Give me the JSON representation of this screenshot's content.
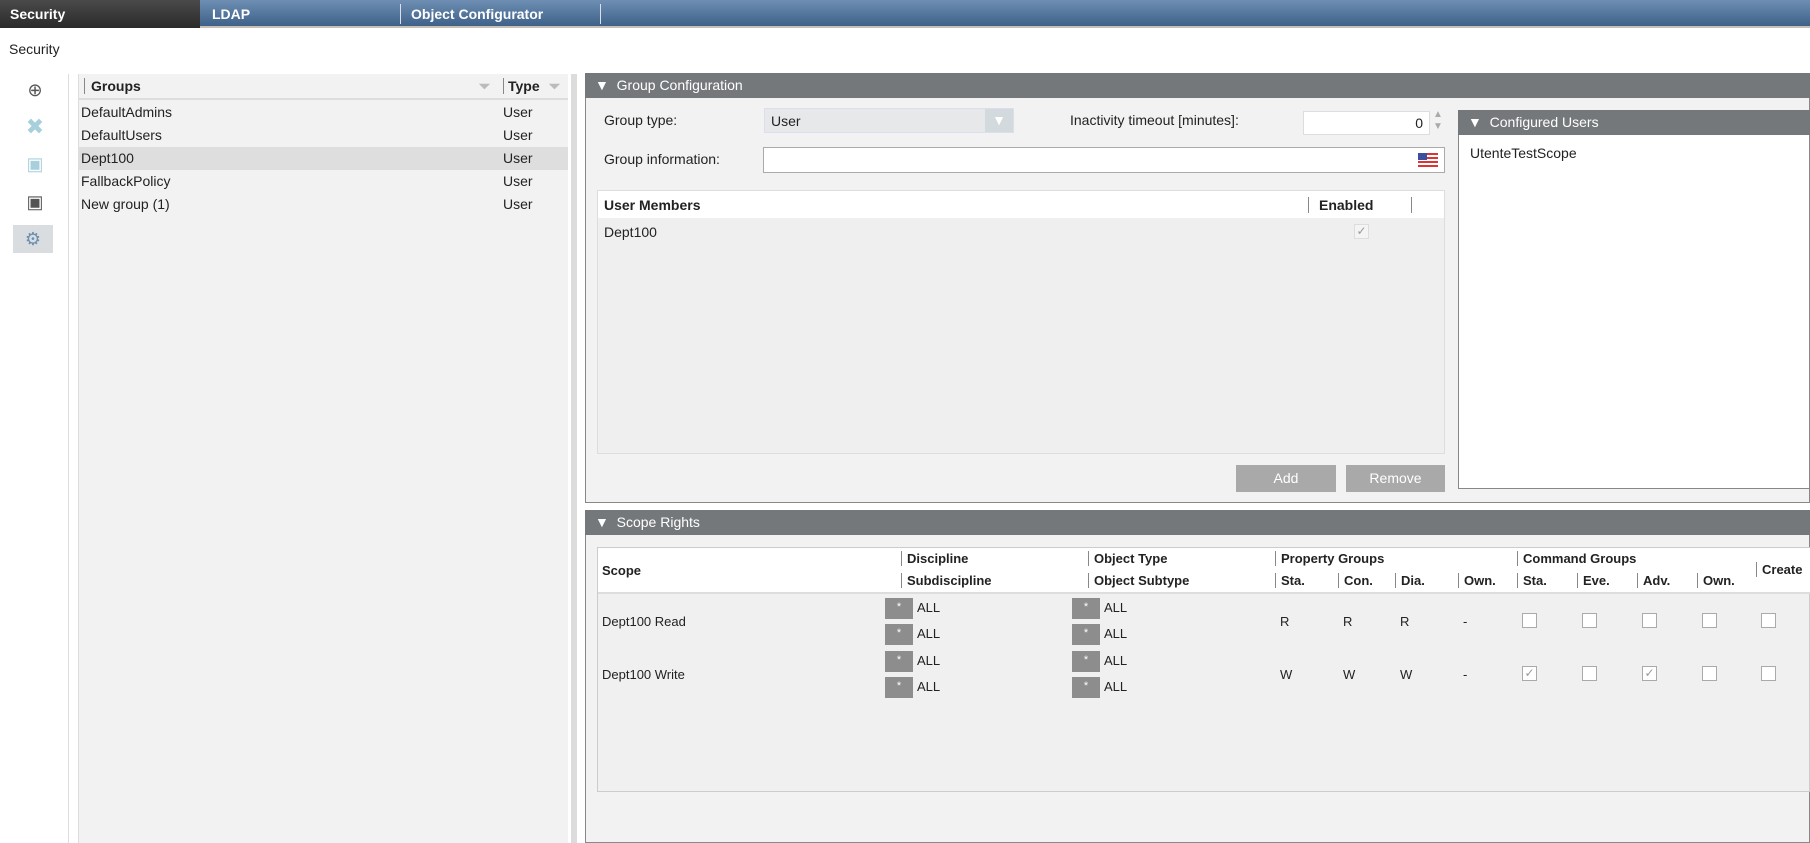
{
  "tabs": [
    {
      "label": "Security",
      "active": true
    },
    {
      "label": "LDAP"
    },
    {
      "label": "Object Configurator"
    }
  ],
  "breadcrumb": "Security",
  "toolbar": {
    "icons": [
      "new-document-icon",
      "delete-icon",
      "save-icon",
      "save-as-icon",
      "folder-settings-icon"
    ]
  },
  "groups": {
    "col_groups": "Groups",
    "col_type": "Type",
    "rows": [
      {
        "name": "DefaultAdmins",
        "type": "User"
      },
      {
        "name": "DefaultUsers",
        "type": "User"
      },
      {
        "name": "Dept100",
        "type": "User",
        "selected": true
      },
      {
        "name": "FallbackPolicy",
        "type": "User"
      },
      {
        "name": "New group (1)",
        "type": "User"
      }
    ]
  },
  "group_config": {
    "title": "Group Configuration",
    "group_type_label": "Group type:",
    "group_type_value": "User",
    "inactivity_label": "Inactivity timeout [minutes]:",
    "inactivity_value": "0",
    "group_info_label": "Group information:",
    "group_info_value": "",
    "members": {
      "col_members": "User Members",
      "col_enabled": "Enabled",
      "rows": [
        {
          "name": "Dept100",
          "enabled": true
        }
      ]
    },
    "add_label": "Add",
    "remove_label": "Remove"
  },
  "configured_users": {
    "title": "Configured Users",
    "items": [
      "UtenteTestScope"
    ]
  },
  "scope_rights": {
    "title": "Scope Rights",
    "headers": {
      "scope": "Scope",
      "discipline": "Discipline",
      "subdiscipline": "Subdiscipline",
      "object_type": "Object Type",
      "object_subtype": "Object Subtype",
      "property_groups": "Property Groups",
      "command_groups": "Command Groups",
      "create": "Create",
      "pg": [
        "Sta.",
        "Con.",
        "Dia.",
        "Own."
      ],
      "cg": [
        "Sta.",
        "Eve.",
        "Adv.",
        "Own."
      ]
    },
    "star": "*",
    "rows": [
      {
        "scope": "Dept100 Read",
        "discipline": "ALL",
        "subdiscipline": "ALL",
        "object_type": "ALL",
        "object_subtype": "ALL",
        "pg": [
          "R",
          "R",
          "R",
          "-"
        ],
        "cg": [
          false,
          false,
          false,
          false
        ],
        "create": false
      },
      {
        "scope": "Dept100 Write",
        "discipline": "ALL",
        "subdiscipline": "ALL",
        "object_type": "ALL",
        "object_subtype": "ALL",
        "pg": [
          "W",
          "W",
          "W",
          "-"
        ],
        "cg": [
          true,
          false,
          true,
          false
        ],
        "create": false
      }
    ]
  }
}
